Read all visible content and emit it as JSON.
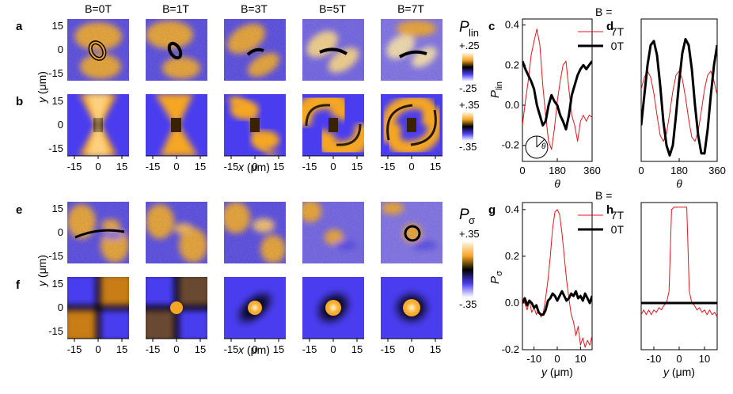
{
  "figure": {
    "panel_letters": [
      "a",
      "b",
      "c",
      "d",
      "e",
      "f",
      "g",
      "h"
    ],
    "field_labels": [
      "B=0T",
      "B=1T",
      "B=3T",
      "B=5T",
      "B=7T"
    ],
    "map_axis": {
      "x_ticks": [
        "-15",
        "0",
        "15"
      ],
      "y_ticks": [
        "15",
        "0",
        "-15"
      ],
      "x_label_var": "x",
      "x_label_unit": " (μm)",
      "y_label_var": "y",
      "y_label_unit": " (μm)"
    },
    "colorbars": {
      "lin": {
        "symbol": "P",
        "subscript": "lin",
        "top": "+.25",
        "bottom": "-.25"
      },
      "lin_sim": {
        "top": "+.35",
        "bottom": "-.35"
      },
      "sigma": {
        "symbol": "P",
        "subscript": "σ",
        "top": "+.35",
        "bottom": "-.35"
      }
    },
    "colors": {
      "orange": "#f5a623",
      "blue": "#4a3df0",
      "black": "#000000",
      "red": "#e8141c"
    }
  },
  "chart_data": [
    {
      "id": "c",
      "type": "line",
      "xlabel": "θ",
      "ylabel_symbol": "P",
      "ylabel_sub": "lin",
      "xlim": [
        0,
        360
      ],
      "ylim": [
        -0.28,
        0.43
      ],
      "xticks": [
        "0",
        "180",
        "360"
      ],
      "yticks": [
        "0.4",
        "0.2",
        "0.0",
        "-0.2"
      ],
      "ytick_values": [
        0.4,
        0.2,
        0.0,
        -0.2
      ],
      "legend_title": "B =",
      "series": [
        {
          "name": "7T",
          "color": "#e8141c",
          "width": 1,
          "x": [
            0,
            15,
            30,
            45,
            60,
            75,
            90,
            105,
            120,
            135,
            150,
            165,
            180,
            195,
            210,
            225,
            240,
            255,
            270,
            285,
            300,
            315,
            330,
            345,
            360
          ],
          "y": [
            -0.1,
            0.02,
            0.12,
            0.25,
            0.32,
            0.38,
            0.3,
            0.1,
            -0.05,
            -0.18,
            -0.22,
            -0.12,
            0.02,
            0.12,
            0.2,
            0.22,
            0.08,
            -0.05,
            -0.1,
            -0.18,
            -0.08,
            -0.05,
            -0.08,
            -0.05,
            -0.06
          ]
        },
        {
          "name": "0T",
          "color": "#000000",
          "width": 3,
          "x": [
            0,
            15,
            30,
            45,
            60,
            75,
            90,
            105,
            120,
            135,
            150,
            165,
            180,
            195,
            210,
            225,
            240,
            255,
            270,
            285,
            300,
            315,
            330,
            345,
            360
          ],
          "y": [
            0.22,
            0.18,
            0.15,
            0.12,
            0.08,
            0.0,
            -0.05,
            -0.1,
            -0.08,
            0.0,
            0.05,
            0.02,
            0.0,
            -0.05,
            -0.08,
            -0.12,
            -0.05,
            0.05,
            0.1,
            0.15,
            0.18,
            0.2,
            0.18,
            0.2,
            0.22
          ]
        }
      ]
    },
    {
      "id": "d",
      "type": "line",
      "xlabel": "θ",
      "xlim": [
        0,
        360
      ],
      "ylim": [
        -0.28,
        0.43
      ],
      "xticks": [
        "0",
        "180",
        "360"
      ],
      "series": [
        {
          "name": "7T",
          "color": "#e8141c",
          "width": 1,
          "x": [
            0,
            15,
            30,
            45,
            60,
            75,
            90,
            105,
            120,
            135,
            150,
            165,
            180,
            195,
            210,
            225,
            240,
            255,
            270,
            285,
            300,
            315,
            330,
            345,
            360
          ],
          "y": [
            0.08,
            0.14,
            0.17,
            0.14,
            0.06,
            -0.05,
            -0.15,
            -0.18,
            -0.14,
            -0.04,
            0.07,
            0.15,
            0.17,
            0.13,
            0.04,
            -0.07,
            -0.16,
            -0.18,
            -0.13,
            -0.03,
            0.08,
            0.15,
            0.17,
            0.12,
            0.05
          ]
        },
        {
          "name": "0T",
          "color": "#000000",
          "width": 3,
          "x": [
            0,
            15,
            30,
            45,
            60,
            75,
            90,
            105,
            120,
            135,
            150,
            165,
            180,
            195,
            210,
            225,
            240,
            255,
            270,
            285,
            300,
            315,
            330,
            345,
            360
          ],
          "y": [
            -0.1,
            0.05,
            0.2,
            0.3,
            0.32,
            0.25,
            0.1,
            -0.08,
            -0.2,
            -0.25,
            -0.2,
            -0.05,
            0.12,
            0.26,
            0.33,
            0.3,
            0.18,
            0.0,
            -0.15,
            -0.24,
            -0.24,
            -0.12,
            0.05,
            0.2,
            0.3
          ]
        }
      ]
    },
    {
      "id": "g",
      "type": "line",
      "xlabel_var": "y",
      "xlabel_unit": " (μm)",
      "ylabel_symbol": "P",
      "ylabel_sub": "σ",
      "xlim": [
        -15,
        15
      ],
      "ylim": [
        -0.2,
        0.43
      ],
      "xticks": [
        "-10",
        "0",
        "10"
      ],
      "xtick_values": [
        -10,
        0,
        10
      ],
      "yticks": [
        "0.4",
        "0.2",
        "0.0",
        "-0.2"
      ],
      "ytick_values": [
        0.4,
        0.2,
        0.0,
        -0.2
      ],
      "legend_title": "B =",
      "series": [
        {
          "name": "7T",
          "color": "#e8141c",
          "width": 1,
          "x": [
            -15,
            -14,
            -13,
            -12,
            -11,
            -10,
            -9,
            -8,
            -7,
            -6,
            -5,
            -4,
            -3,
            -2,
            -1,
            0,
            1,
            2,
            3,
            4,
            5,
            6,
            7,
            8,
            9,
            10,
            11,
            12,
            13,
            14,
            15
          ],
          "y": [
            0.02,
            0.0,
            -0.03,
            0.01,
            -0.04,
            -0.02,
            -0.05,
            -0.03,
            -0.06,
            -0.04,
            0.02,
            0.1,
            0.2,
            0.32,
            0.39,
            0.4,
            0.38,
            0.3,
            0.2,
            0.1,
            0.02,
            -0.05,
            -0.08,
            -0.14,
            -0.1,
            -0.18,
            -0.15,
            -0.19,
            -0.16,
            -0.18,
            -0.14
          ]
        },
        {
          "name": "0T",
          "color": "#000000",
          "width": 3,
          "x": [
            -15,
            -14,
            -13,
            -12,
            -11,
            -10,
            -9,
            -8,
            -7,
            -6,
            -5,
            -4,
            -3,
            -2,
            -1,
            0,
            1,
            2,
            3,
            4,
            5,
            6,
            7,
            8,
            9,
            10,
            11,
            12,
            13,
            14,
            15
          ],
          "y": [
            0.0,
            0.02,
            -0.01,
            0.01,
            0.0,
            -0.02,
            -0.01,
            -0.04,
            -0.05,
            -0.05,
            -0.03,
            0.01,
            0.02,
            0.04,
            0.03,
            0.01,
            0.03,
            0.05,
            0.03,
            0.01,
            0.02,
            0.04,
            0.03,
            0.05,
            0.02,
            0.03,
            0.01,
            0.04,
            0.02,
            0.0,
            0.03
          ]
        }
      ]
    },
    {
      "id": "h",
      "type": "line",
      "xlabel_var": "y",
      "xlabel_unit": " (μm)",
      "xlim": [
        -15,
        15
      ],
      "ylim": [
        -0.2,
        0.43
      ],
      "xticks": [
        "-10",
        "0",
        "10"
      ],
      "xtick_values": [
        -10,
        0,
        10
      ],
      "series": [
        {
          "name": "7T",
          "color": "#e8141c",
          "width": 1,
          "x": [
            -15,
            -14,
            -13,
            -12,
            -11,
            -10,
            -9,
            -8,
            -7,
            -6,
            -5,
            -4,
            -3,
            -2,
            -1,
            0,
            1,
            2,
            3,
            4,
            5,
            6,
            7,
            8,
            9,
            10,
            11,
            12,
            13,
            14,
            15
          ],
          "y": [
            -0.05,
            -0.03,
            -0.05,
            -0.03,
            -0.05,
            -0.03,
            -0.04,
            -0.02,
            -0.03,
            -0.01,
            0.0,
            0.05,
            0.4,
            0.41,
            0.41,
            0.41,
            0.41,
            0.41,
            0.41,
            0.05,
            0.0,
            -0.01,
            -0.03,
            -0.02,
            -0.04,
            -0.03,
            -0.05,
            -0.03,
            -0.05,
            -0.04,
            -0.06
          ]
        },
        {
          "name": "0T",
          "color": "#000000",
          "width": 3,
          "x": [
            -15,
            15
          ],
          "y": [
            0.0,
            0.0
          ]
        }
      ]
    }
  ]
}
